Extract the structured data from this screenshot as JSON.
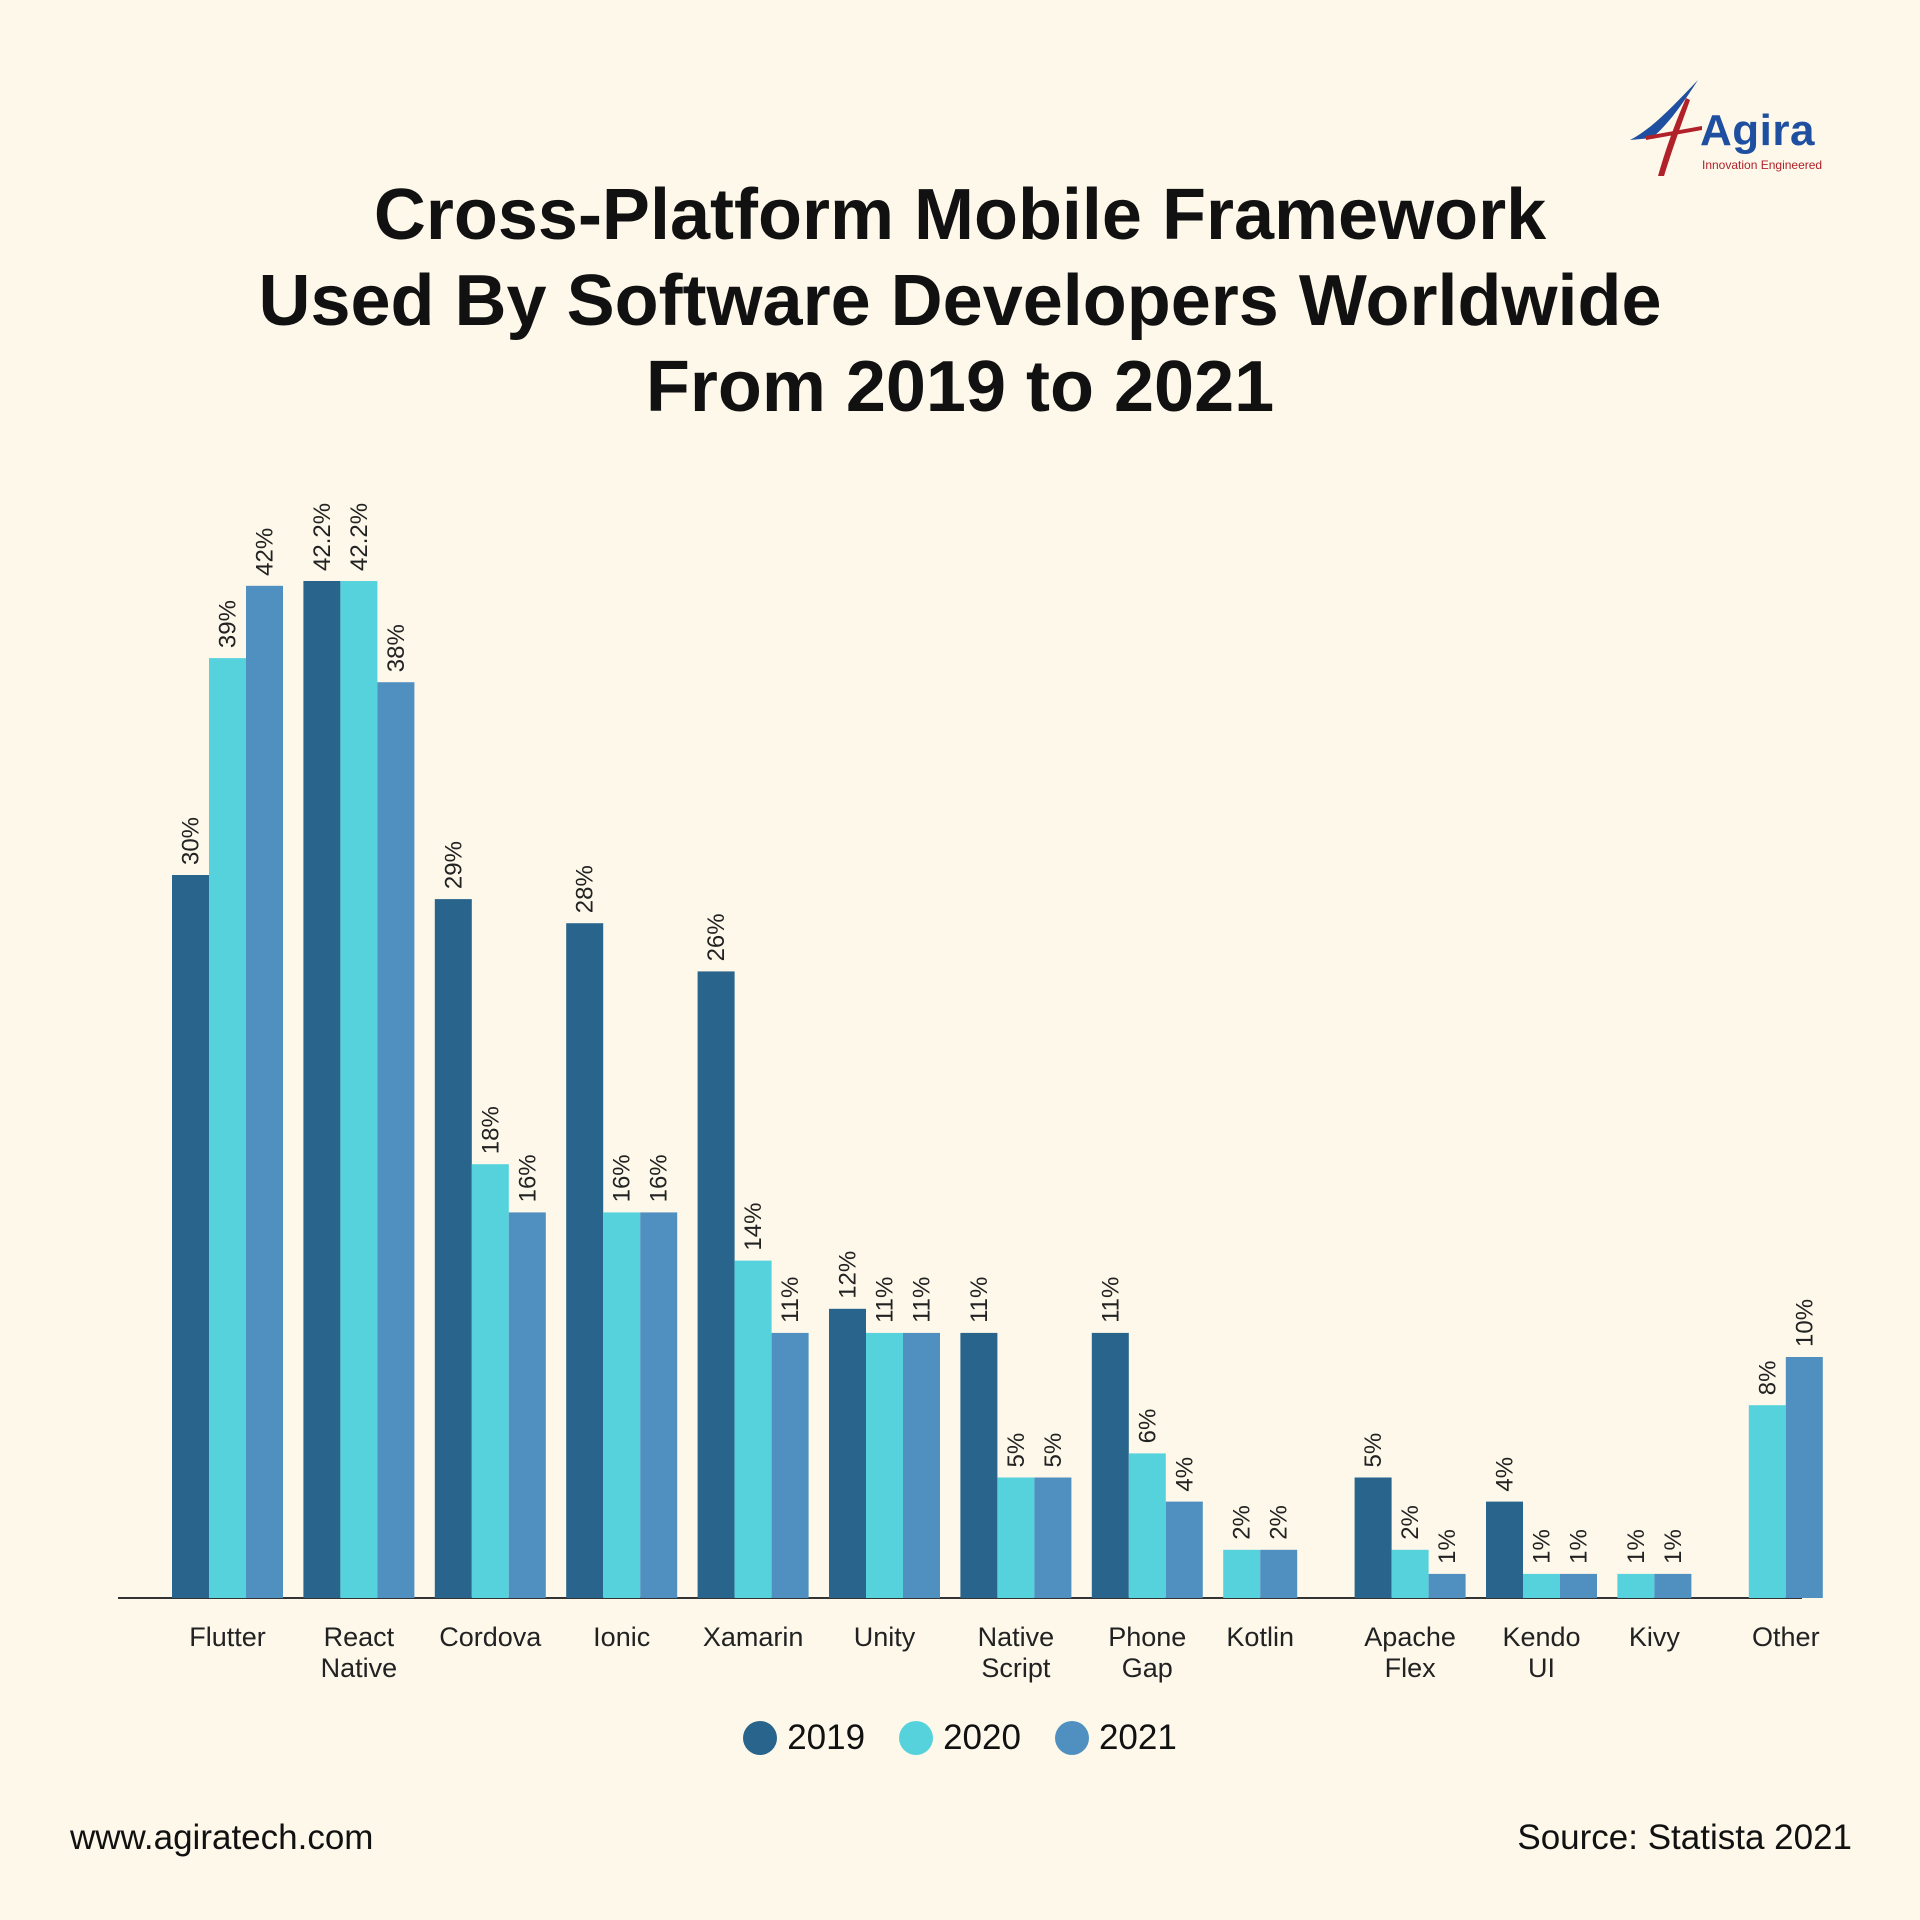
{
  "brand": {
    "name": "Agira",
    "tagline": "Innovation Engineered",
    "colors": {
      "blue": "#1f4fa0",
      "red": "#b0212a"
    }
  },
  "title_lines": [
    "Cross-Platform Mobile Framework",
    "Used By Software Developers Worldwide",
    "From 2019 to 2021"
  ],
  "footer": {
    "website": "www.agiratech.com",
    "source": "Source: Statista 2021"
  },
  "chart_data": {
    "type": "bar",
    "title": "Cross-Platform Mobile Framework Used By Software Developers Worldwide From 2019 to 2021",
    "categories": [
      [
        "Flutter"
      ],
      [
        "React",
        "Native"
      ],
      [
        "Cordova"
      ],
      [
        "Ionic"
      ],
      [
        "Xamarin"
      ],
      [
        "Unity"
      ],
      [
        "Native",
        "Script"
      ],
      [
        "Phone",
        "Gap"
      ],
      [
        "Kotlin"
      ],
      [
        "Apache",
        "Flex"
      ],
      [
        "Kendo",
        "UI"
      ],
      [
        "Kivy"
      ],
      [
        "Other"
      ]
    ],
    "series": [
      {
        "name": "2019",
        "color": "#28648b",
        "values": [
          30,
          42.2,
          29,
          28,
          26,
          12,
          11,
          11,
          null,
          5,
          4,
          null,
          null
        ],
        "labels": [
          "30%",
          "42.2%",
          "29%",
          "28%",
          "26%",
          "12%",
          "11%",
          "11%",
          null,
          "5%",
          "4%",
          null,
          null
        ]
      },
      {
        "name": "2020",
        "color": "#55d2dc",
        "values": [
          39,
          42.2,
          18,
          16,
          14,
          11,
          5,
          6,
          2,
          2,
          1,
          1,
          8
        ],
        "labels": [
          "39%",
          "42.2%",
          "18%",
          "16%",
          "14%",
          "11%",
          "5%",
          "6%",
          "2%",
          "2%",
          "1%",
          "1%",
          "8%"
        ]
      },
      {
        "name": "2021",
        "color": "#4f90c0",
        "values": [
          42,
          38,
          16,
          16,
          11,
          11,
          5,
          4,
          2,
          1,
          1,
          1,
          10
        ],
        "labels": [
          "42%",
          "38%",
          "16%",
          "16%",
          "11%",
          "11%",
          "5%",
          "4%",
          "2%",
          "1%",
          "1%",
          "1%",
          "10%"
        ]
      }
    ],
    "ylim": [
      0,
      42.2
    ],
    "grid": false,
    "legend_position": "bottom-center"
  }
}
